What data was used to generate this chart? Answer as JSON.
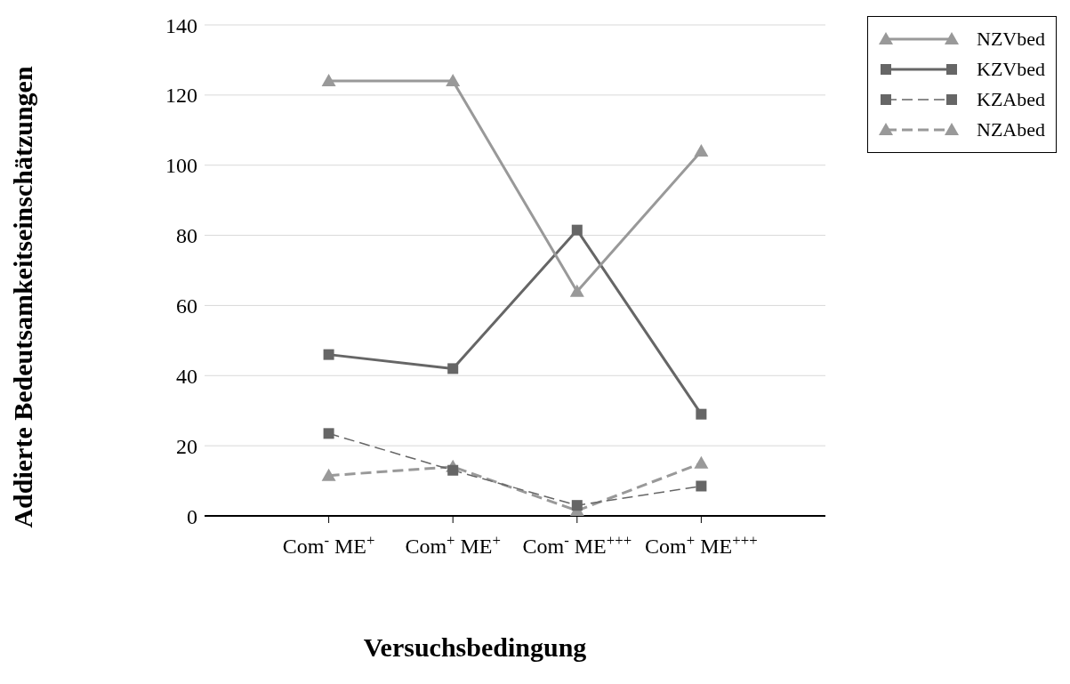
{
  "chart_data": {
    "type": "line",
    "xlabel": "Versuchsbedingung",
    "ylabel": "Addierte Bedeutsamkeitseinschätzungen",
    "categories": [
      "Com$^{-}$ ME$^{+}$",
      "Com$^{+}$ ME$^{+}$",
      "Com$^{-}$ ME$^{+++}$",
      "Com$^{+}$ ME$^{+++}$"
    ],
    "series": [
      {
        "name": "NZVbed",
        "color": "#999999",
        "marker": "triangle",
        "line_style": "solid",
        "values": [
          124,
          124,
          64,
          104
        ]
      },
      {
        "name": "KZVbed",
        "color": "#666666",
        "marker": "square",
        "line_style": "solid",
        "values": [
          46,
          42,
          81.5,
          29
        ]
      },
      {
        "name": "KZAbed",
        "color": "#666666",
        "marker": "square",
        "line_style": "dashed",
        "values": [
          23.5,
          13,
          3,
          8.5
        ]
      },
      {
        "name": "NZAbed",
        "color": "#999999",
        "marker": "triangle",
        "line_style": "dashed",
        "values": [
          11.5,
          14,
          1.5,
          15
        ]
      }
    ],
    "ylim": [
      0,
      140
    ],
    "yticks": [
      0,
      20,
      40,
      60,
      80,
      100,
      120,
      140
    ],
    "grid": "y",
    "legend": "top right"
  }
}
